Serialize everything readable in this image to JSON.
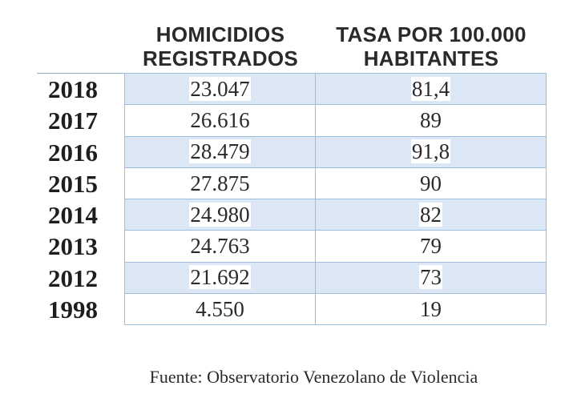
{
  "headers": {
    "homicidios": [
      "HOMICIDIOS",
      "REGISTRADOS"
    ],
    "tasa": [
      "TASA POR 100.000",
      "HABITANTES"
    ]
  },
  "rows": [
    {
      "year": "2018",
      "homicidios": "23.047",
      "tasa": "81,4"
    },
    {
      "year": "2017",
      "homicidios": "26.616",
      "tasa": "89"
    },
    {
      "year": "2016",
      "homicidios": "28.479",
      "tasa": "91,8"
    },
    {
      "year": "2015",
      "homicidios": "27.875",
      "tasa": "90"
    },
    {
      "year": "2014",
      "homicidios": "24.980",
      "tasa": "82"
    },
    {
      "year": "2013",
      "homicidios": "24.763",
      "tasa": "79"
    },
    {
      "year": "2012",
      "homicidios": "21.692",
      "tasa": "73"
    },
    {
      "year": "1998",
      "homicidios": "4.550",
      "tasa": "19"
    }
  ],
  "source": "Fuente: Observatorio Venezolano de Violencia",
  "colors": {
    "shaded_row": "#dbe7f4",
    "border": "#9dbedc",
    "text": "#2a2a2a"
  }
}
